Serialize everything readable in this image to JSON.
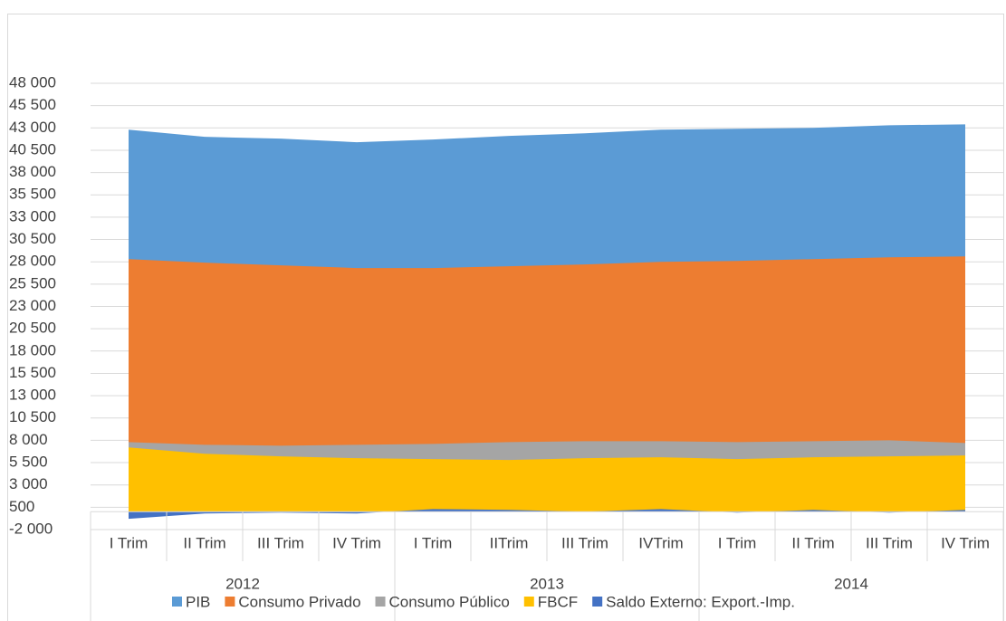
{
  "chart_data": {
    "type": "area",
    "categories": [
      "I Trim",
      "II Trim",
      "III Trim",
      "IV Trim",
      "I Trim",
      "IITrim",
      "III Trim",
      "IVTrim",
      "I Trim",
      "II Trim",
      "III Trim",
      "IV Trim"
    ],
    "category_groups": [
      "2012",
      "2013",
      "2014"
    ],
    "series": [
      {
        "name": "PIB",
        "color": "#5b9bd5",
        "values": [
          42800,
          42000,
          41800,
          41400,
          41700,
          42100,
          42400,
          42800,
          42900,
          43000,
          43300,
          43400
        ]
      },
      {
        "name": "Consumo Privado",
        "color": "#ed7d31",
        "values": [
          28300,
          27900,
          27600,
          27300,
          27300,
          27500,
          27700,
          28000,
          28100,
          28300,
          28500,
          28600
        ]
      },
      {
        "name": "Consumo Público",
        "color": "#a5a5a5",
        "values": [
          7800,
          7500,
          7400,
          7500,
          7600,
          7800,
          7900,
          7900,
          7800,
          7900,
          8000,
          7700
        ]
      },
      {
        "name": "FBCF",
        "color": "#ffc000",
        "values": [
          7200,
          6500,
          6200,
          6000,
          5900,
          5800,
          6000,
          6100,
          5900,
          6100,
          6200,
          6300
        ]
      },
      {
        "name": "Saldo Externo: Export.-Imp.",
        "color": "#4472c4",
        "values": [
          -800,
          -200,
          -100,
          -200,
          300,
          200,
          0,
          300,
          -100,
          200,
          -100,
          200
        ]
      }
    ],
    "ylim": [
      -2000,
      48000
    ],
    "yticks": [
      {
        "value": -2000,
        "label": "-2 000"
      },
      500,
      {
        "value": 3000,
        "label": "3 000"
      },
      {
        "value": 5500,
        "label": "5 500"
      },
      {
        "value": 8000,
        "label": "8 000"
      },
      {
        "value": 10500,
        "label": "10 500"
      },
      {
        "value": 13000,
        "label": "13 000"
      },
      {
        "value": 15500,
        "label": "15 500"
      },
      {
        "value": 18000,
        "label": "18 000"
      },
      {
        "value": 20500,
        "label": "20 500"
      },
      {
        "value": 23000,
        "label": "23 000"
      },
      {
        "value": 25500,
        "label": "25 500"
      },
      {
        "value": 28000,
        "label": "28 000"
      },
      {
        "value": 30500,
        "label": "30 500"
      },
      {
        "value": 33000,
        "label": "33 000"
      },
      {
        "value": 35500,
        "label": "35 500"
      },
      {
        "value": 38000,
        "label": "38 000"
      },
      {
        "value": 40500,
        "label": "40 500"
      },
      {
        "value": 43000,
        "label": "43 000"
      },
      {
        "value": 45500,
        "label": "45 500"
      },
      {
        "value": 48000,
        "label": "48 000"
      }
    ],
    "grid": true
  }
}
